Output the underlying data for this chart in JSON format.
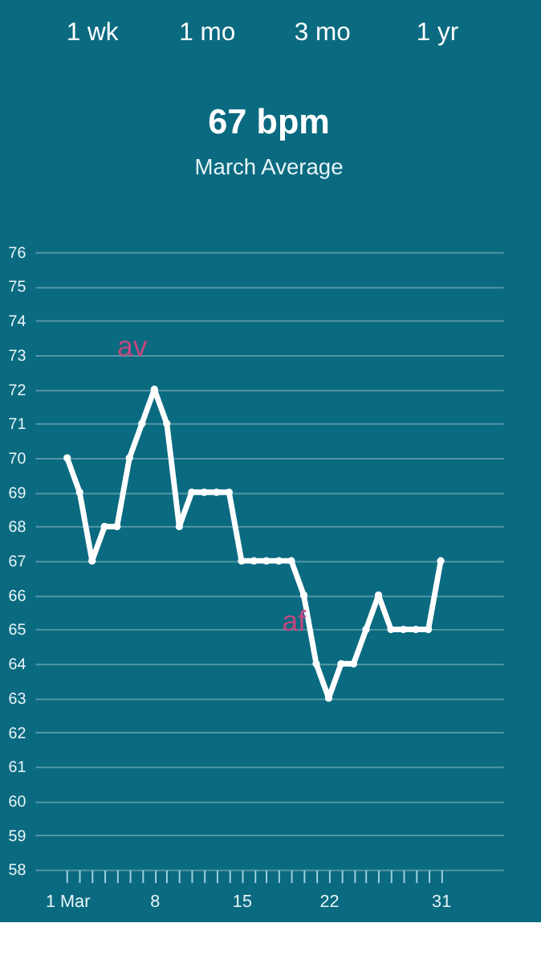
{
  "chart_data": {
    "type": "line",
    "title": "67 bpm",
    "subtitle": "March Average",
    "x": [
      1,
      2,
      3,
      4,
      5,
      6,
      7,
      8,
      9,
      10,
      11,
      12,
      13,
      14,
      15,
      16,
      17,
      18,
      19,
      20,
      21,
      22,
      23,
      24,
      25,
      26,
      27,
      28,
      29,
      30,
      31
    ],
    "series": [
      {
        "color": "#ffffff",
        "values": [
          70,
          69,
          67,
          68,
          68,
          70,
          71,
          72,
          71,
          68,
          69,
          69,
          69,
          69,
          67,
          67,
          67,
          67,
          67,
          66,
          64,
          63,
          64,
          64,
          65,
          66,
          65,
          65,
          65,
          65,
          67
        ]
      }
    ],
    "xlim": [
      -1.6,
      36
    ],
    "ylim": [
      58,
      76
    ],
    "xticks": [
      {
        "value": 1,
        "label": "1 Mar"
      },
      {
        "value": 2,
        "label": null
      },
      {
        "value": 3,
        "label": null
      },
      {
        "value": 4,
        "label": null
      },
      {
        "value": 5,
        "label": null
      },
      {
        "value": 6,
        "label": null
      },
      {
        "value": 7,
        "label": null
      },
      8,
      {
        "value": 9,
        "label": null
      },
      {
        "value": 10,
        "label": null
      },
      {
        "value": 11,
        "label": null
      },
      {
        "value": 12,
        "label": null
      },
      {
        "value": 13,
        "label": null
      },
      {
        "value": 14,
        "label": null
      },
      15,
      {
        "value": 16,
        "label": null
      },
      {
        "value": 17,
        "label": null
      },
      {
        "value": 18,
        "label": null
      },
      {
        "value": 19,
        "label": null
      },
      {
        "value": 20,
        "label": null
      },
      {
        "value": 21,
        "label": null
      },
      22,
      {
        "value": 23,
        "label": null
      },
      {
        "value": 24,
        "label": null
      },
      {
        "value": 25,
        "label": null
      },
      {
        "value": 26,
        "label": null
      },
      {
        "value": 27,
        "label": null
      },
      {
        "value": 28,
        "label": null
      },
      {
        "value": 29,
        "label": null
      },
      {
        "value": 30,
        "label": null
      },
      31
    ],
    "yticks": [
      58,
      59,
      60,
      61,
      62,
      63,
      64,
      65,
      66,
      67,
      68,
      69,
      70,
      71,
      72,
      73,
      74,
      75,
      76
    ],
    "grid": "y",
    "marker": "circle",
    "line_style": "solid",
    "legend": false,
    "annotations": [
      "1 wk",
      "1 mo",
      "3 mo",
      "1 yr",
      {
        "text": "av",
        "x": 8,
        "y": 72
      },
      {
        "text": "af",
        "x": 21,
        "y": 64
      }
    ]
  }
}
